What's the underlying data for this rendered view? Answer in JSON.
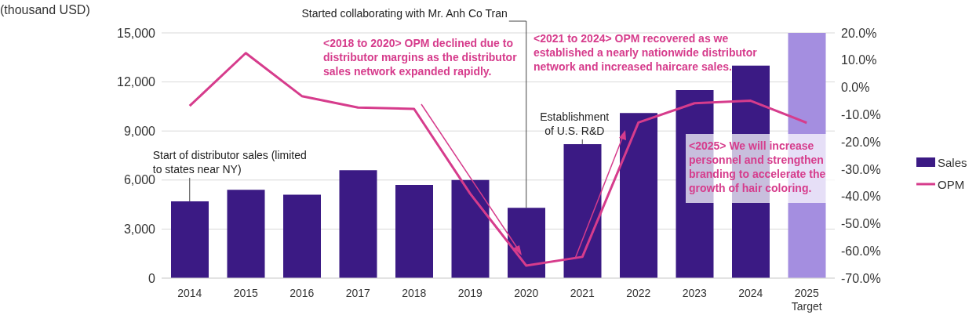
{
  "chart_data": {
    "type": "bar",
    "ylabel": "(thousand USD)",
    "categories": [
      "2014",
      "2015",
      "2016",
      "2017",
      "2018",
      "2019",
      "2020",
      "2021",
      "2022",
      "2023",
      "2024",
      "2025 Target"
    ],
    "series": [
      {
        "name": "Sales",
        "color": "#3b1a84",
        "colors": [
          "#3b1a84",
          "#3b1a84",
          "#3b1a84",
          "#3b1a84",
          "#3b1a84",
          "#3b1a84",
          "#3b1a84",
          "#3b1a84",
          "#3b1a84",
          "#3b1a84",
          "#3b1a84",
          "#a48ee0"
        ],
        "values": [
          4700,
          5400,
          5100,
          6600,
          5700,
          6000,
          4300,
          8200,
          10100,
          11500,
          13000,
          15000
        ]
      },
      {
        "name": "OPM",
        "type": "line",
        "axis": "y2",
        "color": "#d63c8c",
        "values": [
          -6.8,
          12.6,
          -3.2,
          -7.4,
          -7.9,
          -39,
          -65.4,
          -62.2,
          -12.9,
          -5.8,
          -4.9,
          -13
        ]
      }
    ],
    "ylim": [
      0,
      15000
    ],
    "yticks": [
      {
        "value": 0,
        "label": "0"
      },
      {
        "value": 3000,
        "label": "3,000"
      },
      {
        "value": 6000,
        "label": "6,000"
      },
      {
        "value": 9000,
        "label": "9,000"
      },
      {
        "value": 12000,
        "label": "12,000"
      },
      {
        "value": 15000,
        "label": "15,000"
      }
    ],
    "y2lim": [
      -70,
      20
    ],
    "y2ticks": [
      {
        "value": -70,
        "label": "-70.0%"
      },
      {
        "value": -60,
        "label": "-60.0%"
      },
      {
        "value": -50,
        "label": "-50.0%"
      },
      {
        "value": -40,
        "label": "-40.0%"
      },
      {
        "value": -30,
        "label": "-30.0%"
      },
      {
        "value": -20,
        "label": "-20.0%"
      },
      {
        "value": -10,
        "label": "-10.0%"
      },
      {
        "value": 0,
        "label": "0.0%"
      },
      {
        "value": 10,
        "label": "10.0%"
      },
      {
        "value": 20,
        "label": "20.0%"
      }
    ],
    "grid": "y",
    "legend": "right",
    "marker": "none",
    "line_style": "solid",
    "annotations": [
      {
        "text": "Start of distributor sales (limited to states near NY)",
        "x": "2014",
        "y": 4700
      },
      {
        "text": "Started collaborating with Mr. Anh Co Tran",
        "x": "2020",
        "y": 4300
      },
      {
        "text": "Establishment of U.S. R&D",
        "x": "2021",
        "y": 8200
      },
      "<2018 to 2020> OPM declined due to distributor margins as the distributor sales network expanded rapidly.",
      "<2021 to 2024> OPM recovered as we established a nearly nationwide distributor network and increased haircare sales.",
      "<2025> We will increase personnel and strengthen branding to accelerate the growth of hair coloring."
    ]
  }
}
